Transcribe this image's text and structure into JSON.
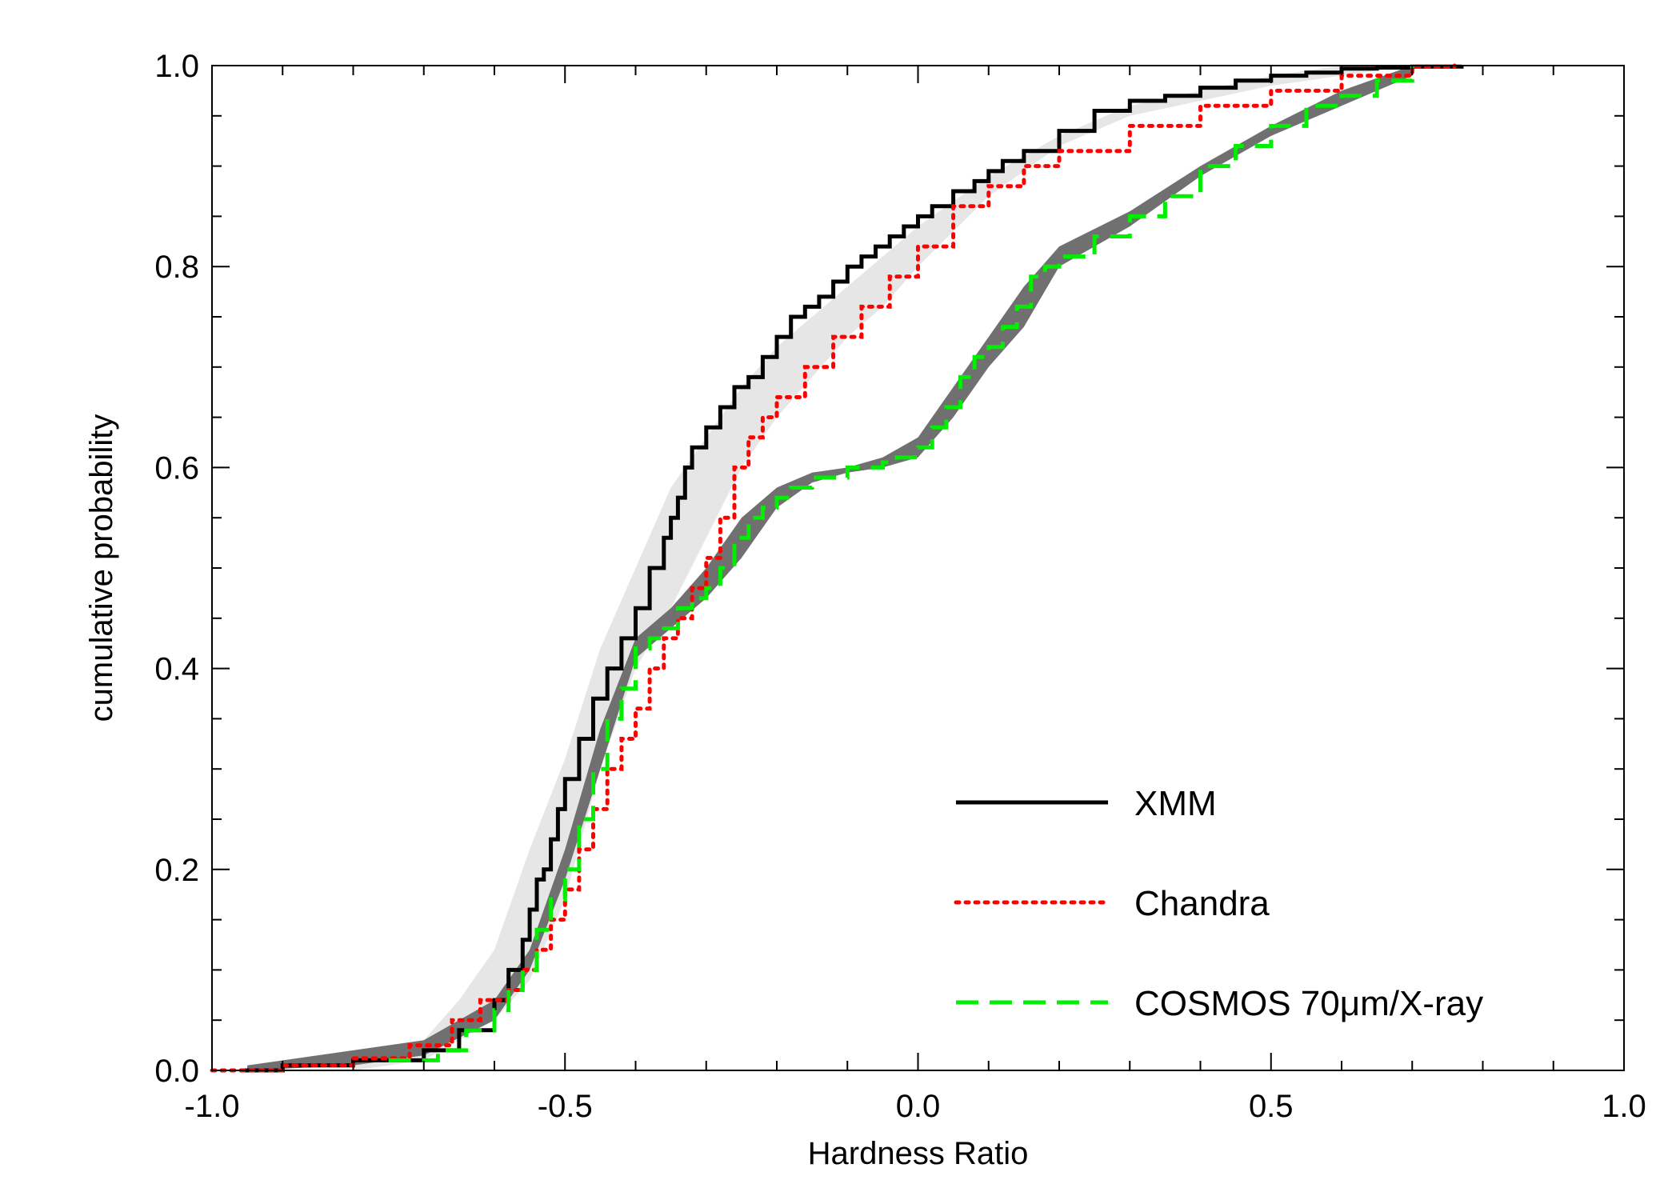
{
  "chart_data": {
    "type": "line",
    "title": "",
    "xlabel": "Hardness Ratio",
    "ylabel": "cumulative probability",
    "xlim": [
      -1.0,
      1.0
    ],
    "ylim": [
      0.0,
      1.0
    ],
    "x_ticks": [
      "-1.0",
      "-0.5",
      "0.0",
      "0.5",
      "1.0"
    ],
    "y_ticks": [
      "0.0",
      "0.2",
      "0.4",
      "0.6",
      "0.8",
      "1.0"
    ],
    "legend_position": "bottom-right",
    "series": [
      {
        "name": "XMM",
        "style": "solid",
        "color": "#000000",
        "x": [
          -0.96,
          -0.9,
          -0.8,
          -0.7,
          -0.65,
          -0.6,
          -0.58,
          -0.56,
          -0.55,
          -0.54,
          -0.53,
          -0.52,
          -0.51,
          -0.5,
          -0.48,
          -0.46,
          -0.44,
          -0.42,
          -0.4,
          -0.38,
          -0.36,
          -0.35,
          -0.34,
          -0.33,
          -0.32,
          -0.3,
          -0.28,
          -0.26,
          -0.24,
          -0.22,
          -0.2,
          -0.18,
          -0.16,
          -0.14,
          -0.12,
          -0.1,
          -0.08,
          -0.06,
          -0.04,
          -0.02,
          0.0,
          0.02,
          0.05,
          0.08,
          0.1,
          0.12,
          0.15,
          0.2,
          0.25,
          0.3,
          0.35,
          0.4,
          0.45,
          0.5,
          0.55,
          0.6,
          0.65,
          0.7,
          0.77
        ],
        "y": [
          0.0,
          0.005,
          0.01,
          0.02,
          0.04,
          0.07,
          0.1,
          0.13,
          0.16,
          0.19,
          0.2,
          0.23,
          0.26,
          0.29,
          0.33,
          0.37,
          0.4,
          0.43,
          0.46,
          0.5,
          0.53,
          0.55,
          0.57,
          0.6,
          0.62,
          0.64,
          0.66,
          0.68,
          0.69,
          0.71,
          0.73,
          0.75,
          0.76,
          0.77,
          0.785,
          0.8,
          0.81,
          0.82,
          0.83,
          0.84,
          0.85,
          0.86,
          0.875,
          0.885,
          0.895,
          0.905,
          0.915,
          0.935,
          0.955,
          0.965,
          0.97,
          0.978,
          0.985,
          0.99,
          0.993,
          0.997,
          0.998,
          0.999,
          1.0
        ]
      },
      {
        "name": "Chandra",
        "style": "dotted",
        "color": "#ff0000",
        "x": [
          -1.0,
          -0.9,
          -0.8,
          -0.72,
          -0.66,
          -0.62,
          -0.58,
          -0.56,
          -0.54,
          -0.52,
          -0.5,
          -0.48,
          -0.46,
          -0.44,
          -0.42,
          -0.4,
          -0.38,
          -0.36,
          -0.34,
          -0.32,
          -0.3,
          -0.28,
          -0.26,
          -0.24,
          -0.22,
          -0.2,
          -0.16,
          -0.12,
          -0.08,
          -0.04,
          0.0,
          0.05,
          0.1,
          0.15,
          0.2,
          0.3,
          0.4,
          0.5,
          0.6,
          0.7,
          0.76
        ],
        "y": [
          0.0,
          0.005,
          0.012,
          0.025,
          0.05,
          0.07,
          0.08,
          0.1,
          0.12,
          0.15,
          0.18,
          0.22,
          0.26,
          0.3,
          0.33,
          0.36,
          0.4,
          0.43,
          0.45,
          0.48,
          0.51,
          0.55,
          0.6,
          0.63,
          0.65,
          0.67,
          0.7,
          0.73,
          0.76,
          0.79,
          0.82,
          0.86,
          0.88,
          0.9,
          0.915,
          0.94,
          0.96,
          0.975,
          0.99,
          0.999,
          1.0
        ]
      },
      {
        "name": "COSMOS 70μm/X-ray",
        "style": "dashed",
        "color": "#00ee00",
        "x": [
          -0.75,
          -0.68,
          -0.64,
          -0.6,
          -0.58,
          -0.56,
          -0.54,
          -0.52,
          -0.5,
          -0.48,
          -0.46,
          -0.44,
          -0.42,
          -0.4,
          -0.38,
          -0.36,
          -0.34,
          -0.32,
          -0.3,
          -0.28,
          -0.26,
          -0.24,
          -0.22,
          -0.2,
          -0.18,
          -0.15,
          -0.1,
          -0.05,
          -0.03,
          0.0,
          0.02,
          0.04,
          0.06,
          0.08,
          0.1,
          0.12,
          0.14,
          0.16,
          0.18,
          0.2,
          0.25,
          0.3,
          0.35,
          0.4,
          0.45,
          0.5,
          0.55,
          0.6,
          0.65,
          0.7
        ],
        "y": [
          0.01,
          0.02,
          0.04,
          0.06,
          0.08,
          0.1,
          0.14,
          0.17,
          0.2,
          0.25,
          0.3,
          0.35,
          0.38,
          0.42,
          0.43,
          0.44,
          0.46,
          0.47,
          0.48,
          0.5,
          0.53,
          0.55,
          0.56,
          0.57,
          0.58,
          0.59,
          0.6,
          0.605,
          0.61,
          0.62,
          0.64,
          0.66,
          0.69,
          0.71,
          0.72,
          0.74,
          0.76,
          0.79,
          0.8,
          0.81,
          0.83,
          0.85,
          0.87,
          0.9,
          0.92,
          0.94,
          0.96,
          0.97,
          0.985,
          1.0
        ]
      }
    ],
    "bands": [
      {
        "name": "light-gray-band",
        "color": "#e6e6e6",
        "x": [
          -0.8,
          -0.7,
          -0.65,
          -0.6,
          -0.55,
          -0.5,
          -0.45,
          -0.4,
          -0.35,
          -0.3,
          -0.25,
          -0.2,
          -0.15,
          -0.1,
          -0.05,
          0.0,
          0.1,
          0.2,
          0.3,
          0.4,
          0.5,
          0.6,
          0.7
        ],
        "y_low": [
          0.0,
          0.01,
          0.03,
          0.05,
          0.09,
          0.17,
          0.3,
          0.4,
          0.46,
          0.53,
          0.6,
          0.65,
          0.69,
          0.73,
          0.76,
          0.8,
          0.87,
          0.92,
          0.95,
          0.965,
          0.98,
          0.99,
          1.0
        ],
        "y_high": [
          0.01,
          0.03,
          0.07,
          0.12,
          0.22,
          0.31,
          0.42,
          0.5,
          0.58,
          0.63,
          0.68,
          0.72,
          0.75,
          0.78,
          0.81,
          0.84,
          0.89,
          0.93,
          0.96,
          0.975,
          0.99,
          1.0,
          1.0
        ]
      },
      {
        "name": "dark-gray-band",
        "color": "#707070",
        "x": [
          -0.95,
          -0.8,
          -0.7,
          -0.6,
          -0.55,
          -0.5,
          -0.45,
          -0.4,
          -0.35,
          -0.3,
          -0.25,
          -0.2,
          -0.15,
          -0.1,
          -0.05,
          0.0,
          0.05,
          0.1,
          0.15,
          0.2,
          0.3,
          0.4,
          0.5,
          0.6,
          0.7
        ],
        "y_low": [
          0.0,
          0.005,
          0.015,
          0.05,
          0.1,
          0.19,
          0.3,
          0.41,
          0.44,
          0.47,
          0.51,
          0.56,
          0.585,
          0.595,
          0.6,
          0.61,
          0.65,
          0.7,
          0.74,
          0.8,
          0.84,
          0.89,
          0.93,
          0.96,
          0.99
        ],
        "y_high": [
          0.005,
          0.02,
          0.03,
          0.07,
          0.12,
          0.22,
          0.34,
          0.43,
          0.46,
          0.5,
          0.55,
          0.58,
          0.595,
          0.6,
          0.61,
          0.63,
          0.68,
          0.73,
          0.78,
          0.82,
          0.855,
          0.9,
          0.94,
          0.975,
          1.0
        ]
      }
    ]
  }
}
